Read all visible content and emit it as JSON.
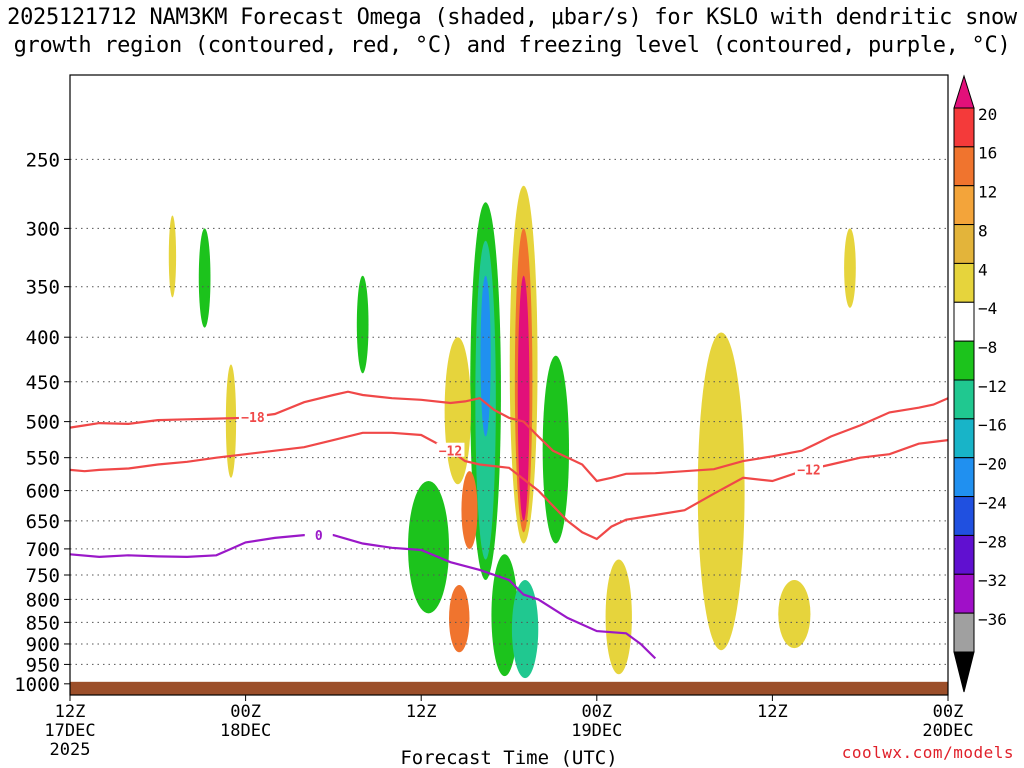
{
  "page": {
    "title_line1": "2025121712 NAM3KM Forecast Omega (shaded, μbar/s) for KSLO with dendritic snow",
    "title_line2": "growth region (contoured, red, °C) and freezing level (contoured, purple, °C)",
    "credit": "coolwx.com/models"
  },
  "chart_data": {
    "type": "time-height-cross-section",
    "xlabel": "Forecast Time (UTC)",
    "ylabel": "",
    "x_range_hours": [
      0,
      60
    ],
    "y_range_hPa": [
      1030,
      200
    ],
    "y_ticks": [
      250,
      300,
      350,
      400,
      450,
      500,
      550,
      600,
      650,
      700,
      750,
      800,
      850,
      900,
      950,
      1000
    ],
    "x_ticks": [
      {
        "hour": 0,
        "line1": "12Z",
        "line2": "17DEC",
        "line3": "2025"
      },
      {
        "hour": 12,
        "line1": "00Z",
        "line2": "18DEC",
        "line3": ""
      },
      {
        "hour": 24,
        "line1": "12Z",
        "line2": "",
        "line3": ""
      },
      {
        "hour": 36,
        "line1": "00Z",
        "line2": "19DEC",
        "line3": ""
      },
      {
        "hour": 48,
        "line1": "12Z",
        "line2": "",
        "line3": ""
      },
      {
        "hour": 60,
        "line1": "00Z",
        "line2": "20DEC",
        "line3": ""
      }
    ],
    "colorbar": {
      "labels": [
        "20",
        "16",
        "12",
        "8",
        "4",
        "−4",
        "−8",
        "−12",
        "−16",
        "−20",
        "−24",
        "−28",
        "−32",
        "−36"
      ],
      "colors": [
        "#e2107a",
        "#f43a3a",
        "#f0742e",
        "#f3a43a",
        "#e3b43a",
        "#e6d43c",
        "#ffffff",
        "#1cc31c",
        "#20c890",
        "#18b4c8",
        "#2090f0",
        "#2050e0",
        "#6010d0",
        "#a010c8",
        "#a0a0a0",
        "#000000"
      ]
    },
    "contours": [
      {
        "name": "dgz-upper",
        "value": -18,
        "label": "−18",
        "color": "#f04848",
        "points": [
          [
            0,
            508
          ],
          [
            1,
            505
          ],
          [
            2,
            502
          ],
          [
            4,
            503
          ],
          [
            6,
            498
          ],
          [
            8,
            497
          ],
          [
            10,
            496
          ],
          [
            12,
            495
          ],
          [
            14,
            490
          ],
          [
            16,
            475
          ],
          [
            18,
            466
          ],
          [
            19,
            462
          ],
          [
            20,
            466
          ],
          [
            22,
            470
          ],
          [
            24,
            472
          ],
          [
            26,
            476
          ],
          [
            27,
            474
          ],
          [
            28,
            470
          ],
          [
            29,
            485
          ],
          [
            30,
            495
          ],
          [
            31,
            500
          ],
          [
            32,
            520
          ],
          [
            33,
            540
          ],
          [
            35,
            560
          ],
          [
            36,
            585
          ],
          [
            37,
            580
          ],
          [
            38,
            574
          ],
          [
            40,
            573
          ],
          [
            42,
            570
          ],
          [
            44,
            567
          ],
          [
            46,
            555
          ],
          [
            48,
            548
          ],
          [
            50,
            540
          ],
          [
            51,
            530
          ],
          [
            52,
            520
          ],
          [
            54,
            505
          ],
          [
            56,
            488
          ],
          [
            58,
            482
          ],
          [
            59,
            478
          ],
          [
            60,
            470
          ]
        ],
        "label_at": 12.5
      },
      {
        "name": "dgz-lower",
        "value": -12,
        "label": "−12",
        "color": "#f04848",
        "points": [
          [
            0,
            568
          ],
          [
            1,
            570
          ],
          [
            2,
            568
          ],
          [
            4,
            566
          ],
          [
            6,
            560
          ],
          [
            8,
            556
          ],
          [
            10,
            550
          ],
          [
            12,
            545
          ],
          [
            14,
            540
          ],
          [
            16,
            535
          ],
          [
            18,
            525
          ],
          [
            20,
            515
          ],
          [
            22,
            515
          ],
          [
            24,
            518
          ],
          [
            26,
            540
          ],
          [
            27,
            555
          ],
          [
            28,
            560
          ],
          [
            30,
            565
          ],
          [
            32,
            600
          ],
          [
            34,
            650
          ],
          [
            35,
            670
          ],
          [
            36,
            682
          ],
          [
            37,
            660
          ],
          [
            38,
            648
          ],
          [
            40,
            640
          ],
          [
            42,
            632
          ],
          [
            44,
            605
          ],
          [
            46,
            580
          ],
          [
            48,
            585
          ],
          [
            50,
            570
          ],
          [
            52,
            560
          ],
          [
            54,
            550
          ],
          [
            56,
            545
          ],
          [
            58,
            530
          ],
          [
            60,
            525
          ]
        ],
        "label_at": 50.5
      },
      {
        "name": "dgz-lower-label",
        "value": -12,
        "label": "−12",
        "color": "#f04848",
        "points": [],
        "label_at": 26
      },
      {
        "name": "freezing-level",
        "value": 0,
        "label": "0",
        "color": "#9a18c8",
        "points": [
          [
            0,
            710
          ],
          [
            2,
            715
          ],
          [
            4,
            712
          ],
          [
            6,
            714
          ],
          [
            8,
            715
          ],
          [
            10,
            712
          ],
          [
            11,
            700
          ],
          [
            12,
            688
          ],
          [
            14,
            680
          ],
          [
            16,
            675
          ],
          [
            18,
            675
          ],
          [
            20,
            690
          ],
          [
            22,
            698
          ],
          [
            24,
            702
          ],
          [
            26,
            725
          ],
          [
            28,
            740
          ],
          [
            30,
            760
          ],
          [
            31,
            790
          ],
          [
            32,
            800
          ],
          [
            34,
            840
          ],
          [
            36,
            870
          ],
          [
            38,
            875
          ],
          [
            39,
            900
          ],
          [
            40,
            935
          ]
        ],
        "label_at": 17
      }
    ],
    "shading": [
      {
        "name": "omega-center-tower-yellow",
        "color": "#e6d43c",
        "cx": 31.0,
        "p_top": 268,
        "p_bot": 690,
        "w": 0.95
      },
      {
        "name": "omega-center-tower-orange",
        "color": "#f0742e",
        "cx": 31.0,
        "p_top": 300,
        "p_bot": 670,
        "w": 0.6
      },
      {
        "name": "omega-center-tower-pink",
        "color": "#e2107a",
        "cx": 31.0,
        "p_top": 340,
        "p_bot": 650,
        "w": 0.4
      },
      {
        "name": "omega-left-tower-green",
        "color": "#1cc31c",
        "cx": 28.4,
        "p_top": 280,
        "p_bot": 760,
        "w": 1.05
      },
      {
        "name": "omega-left-tower-teal",
        "color": "#20c890",
        "cx": 28.4,
        "p_top": 310,
        "p_bot": 720,
        "w": 0.7
      },
      {
        "name": "omega-left-tower-blue",
        "color": "#2090f0",
        "cx": 28.4,
        "p_top": 340,
        "p_bot": 520,
        "w": 0.35
      },
      {
        "name": "omega-right-green",
        "color": "#1cc31c",
        "cx": 33.2,
        "p_top": 420,
        "p_bot": 690,
        "w": 0.9
      },
      {
        "name": "omega-upper-green-a",
        "color": "#1cc31c",
        "cx": 20.0,
        "p_top": 340,
        "p_bot": 440,
        "w": 0.4
      },
      {
        "name": "omega-upper-green-b",
        "color": "#1cc31c",
        "cx": 9.2,
        "p_top": 300,
        "p_bot": 390,
        "w": 0.4
      },
      {
        "name": "omega-upper-yellow-a",
        "color": "#e6d43c",
        "cx": 7.0,
        "p_top": 290,
        "p_bot": 360,
        "w": 0.25
      },
      {
        "name": "omega-low-green-a",
        "color": "#1cc31c",
        "cx": 24.5,
        "p_top": 585,
        "p_bot": 830,
        "w": 1.4
      },
      {
        "name": "omega-low-green-b",
        "color": "#1cc31c",
        "cx": 29.7,
        "p_top": 710,
        "p_bot": 980,
        "w": 0.9
      },
      {
        "name": "omega-low-blue-core",
        "color": "#6010d0",
        "cx": 31.1,
        "p_top": 780,
        "p_bot": 960,
        "w": 0.55
      },
      {
        "name": "omega-low-teal",
        "color": "#20c890",
        "cx": 31.1,
        "p_top": 760,
        "p_bot": 985,
        "w": 0.9
      },
      {
        "name": "omega-orange-left",
        "color": "#f0742e",
        "cx": 27.3,
        "p_top": 570,
        "p_bot": 700,
        "w": 0.55
      },
      {
        "name": "omega-orange-low",
        "color": "#f0742e",
        "cx": 26.6,
        "p_top": 770,
        "p_bot": 920,
        "w": 0.7
      },
      {
        "name": "omega-yellow-mid",
        "color": "#e6d43c",
        "cx": 37.5,
        "p_top": 720,
        "p_bot": 975,
        "w": 0.9
      },
      {
        "name": "omega-yellow-right",
        "color": "#e6d43c",
        "cx": 44.5,
        "p_top": 395,
        "p_bot": 915,
        "w": 1.6
      },
      {
        "name": "omega-yellow-far-right",
        "color": "#e6d43c",
        "cx": 53.3,
        "p_top": 300,
        "p_bot": 370,
        "w": 0.4
      },
      {
        "name": "omega-yellow-low-right",
        "color": "#e6d43c",
        "cx": 49.5,
        "p_top": 760,
        "p_bot": 910,
        "w": 1.1
      },
      {
        "name": "omega-yellow-upper-mid",
        "color": "#e6d43c",
        "cx": 26.5,
        "p_top": 400,
        "p_bot": 590,
        "w": 0.9
      },
      {
        "name": "omega-yellow-left-small",
        "color": "#e6d43c",
        "cx": 11.0,
        "p_top": 430,
        "p_bot": 580,
        "w": 0.35
      }
    ]
  }
}
